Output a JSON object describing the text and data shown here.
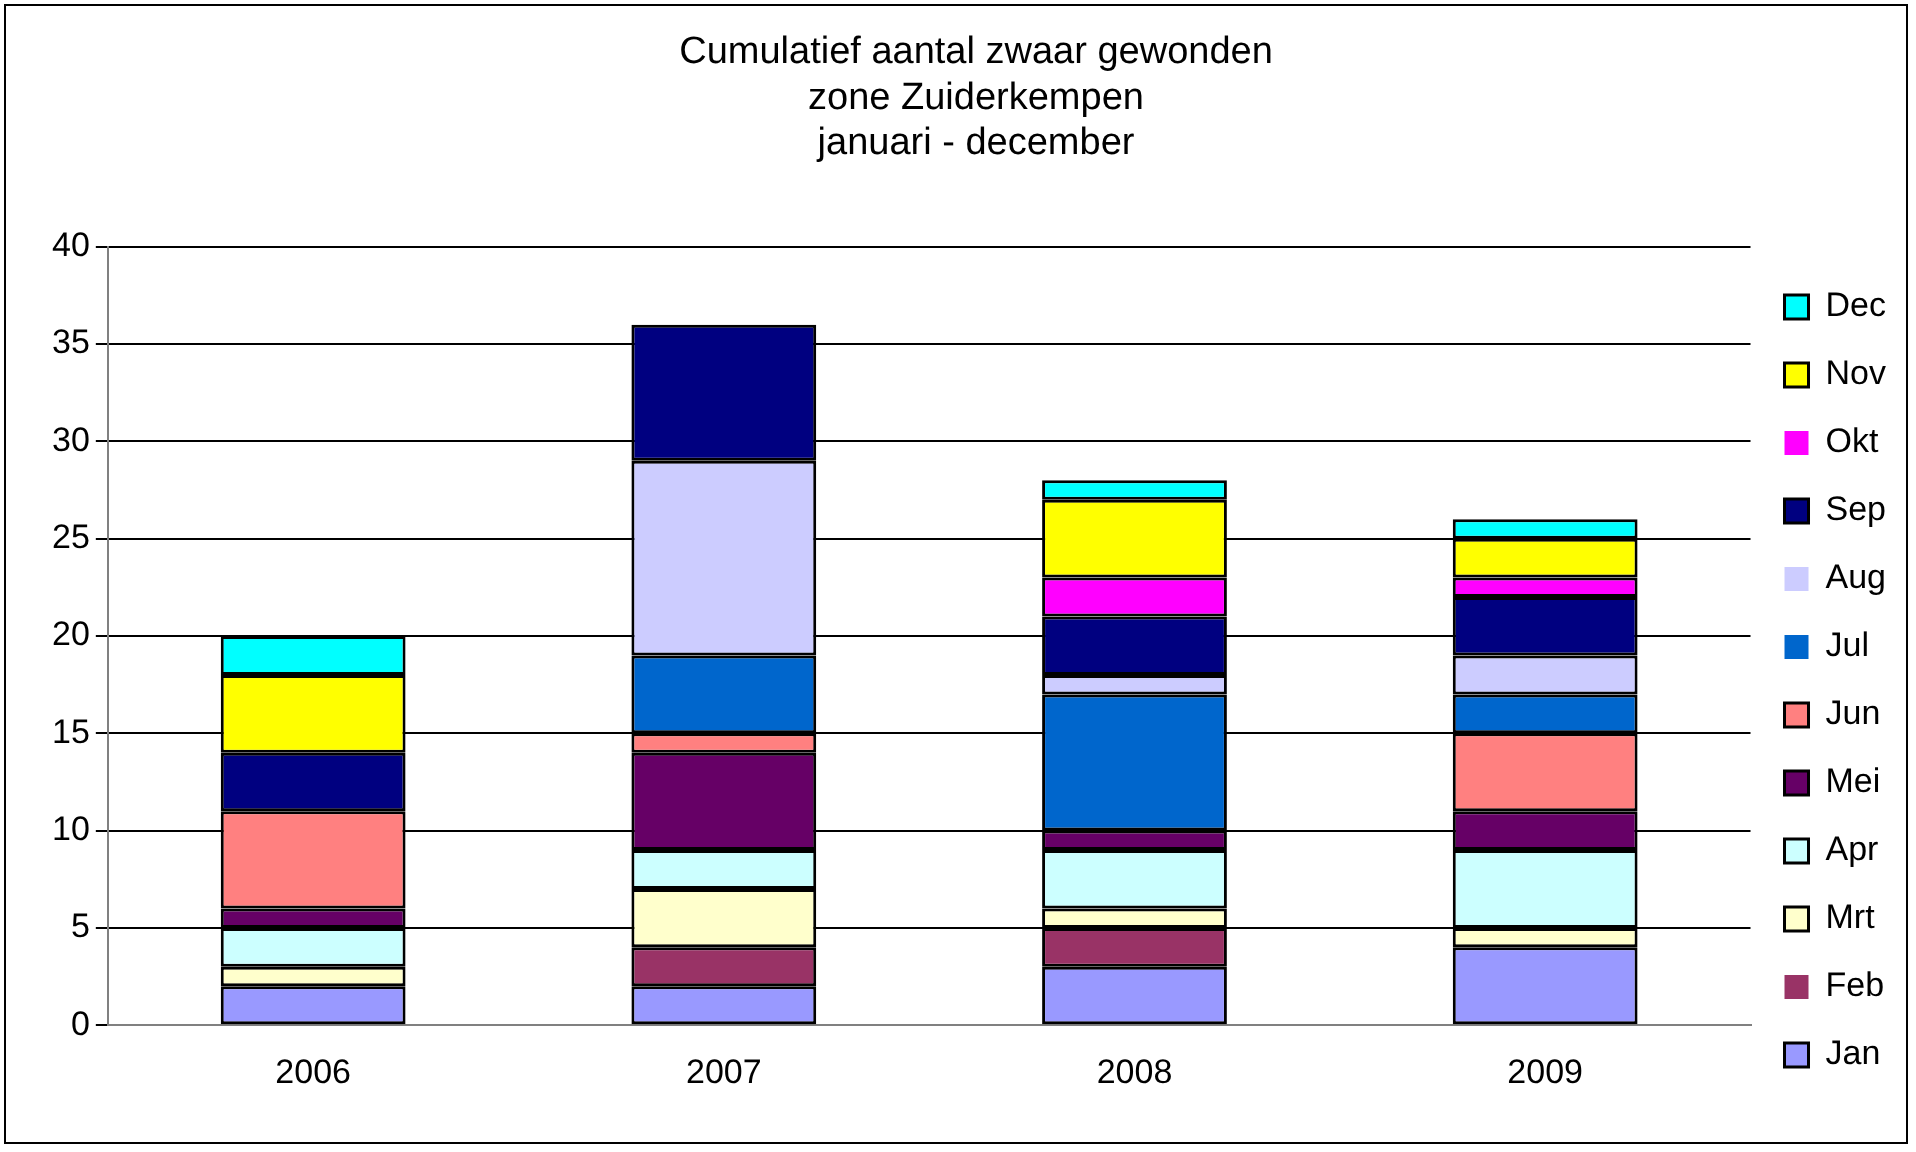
{
  "chart_data": {
    "type": "bar",
    "stacked": true,
    "title": "Cumulatief aantal zwaar gewonden\nzone Zuiderkempen\njanuari - december",
    "categories": [
      "2006",
      "2007",
      "2008",
      "2009"
    ],
    "series": [
      {
        "name": "Jan",
        "color": "#9999ff",
        "values": [
          2,
          2,
          3,
          4
        ]
      },
      {
        "name": "Feb",
        "color": "#993366",
        "values": [
          0,
          2,
          2,
          0
        ]
      },
      {
        "name": "Mrt",
        "color": "#ffffcc",
        "values": [
          1,
          3,
          1,
          1
        ]
      },
      {
        "name": "Apr",
        "color": "#ccffff",
        "values": [
          2,
          2,
          3,
          4
        ]
      },
      {
        "name": "Mei",
        "color": "#660066",
        "values": [
          1,
          5,
          1,
          2
        ]
      },
      {
        "name": "Jun",
        "color": "#ff8080",
        "values": [
          5,
          1,
          0,
          4
        ]
      },
      {
        "name": "Jul",
        "color": "#0066cc",
        "values": [
          0,
          4,
          7,
          2
        ]
      },
      {
        "name": "Aug",
        "color": "#ccccff",
        "values": [
          0,
          10,
          1,
          2
        ]
      },
      {
        "name": "Sep",
        "color": "#000080",
        "values": [
          3,
          7,
          3,
          3
        ]
      },
      {
        "name": "Okt",
        "color": "#ff00ff",
        "values": [
          0,
          0,
          2,
          1
        ]
      },
      {
        "name": "Nov",
        "color": "#ffff00",
        "values": [
          4,
          0,
          4,
          2
        ]
      },
      {
        "name": "Dec",
        "color": "#00ffff",
        "values": [
          2,
          0,
          1,
          1
        ]
      }
    ],
    "ylim": [
      0,
      40
    ],
    "yticks": [
      0,
      5,
      10,
      15,
      20,
      25,
      30,
      35,
      40
    ],
    "grid": "y",
    "legend": "right"
  }
}
